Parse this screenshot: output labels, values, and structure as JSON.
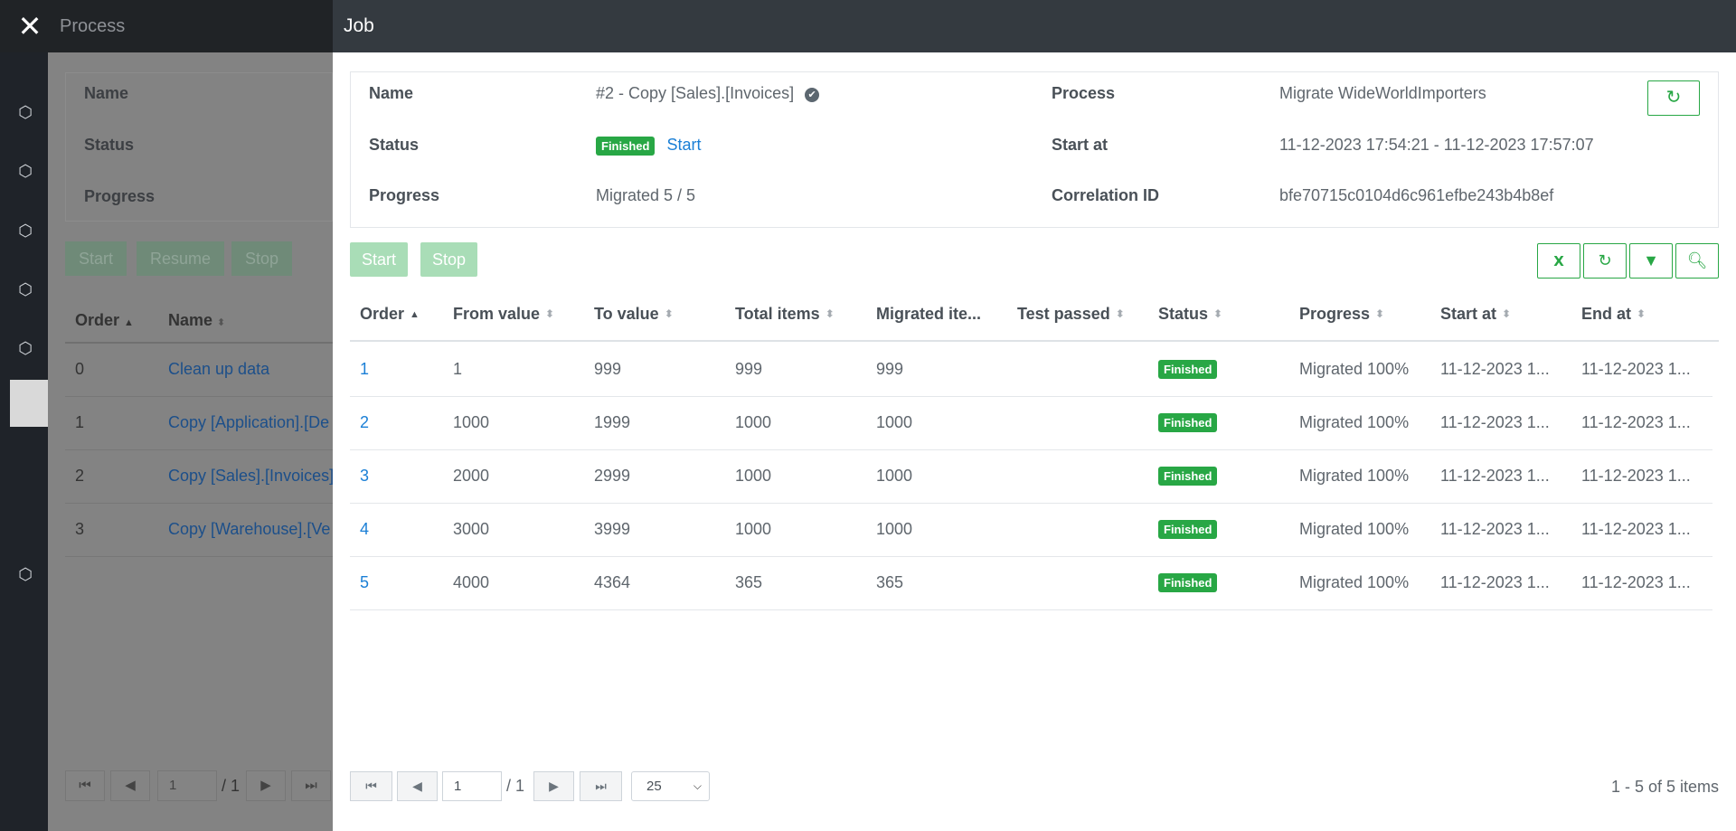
{
  "background": {
    "title": "Process",
    "card": {
      "labels": [
        "Name",
        "Status",
        "Progress"
      ]
    },
    "buttons": [
      "Start",
      "Resume",
      "Stop"
    ],
    "table": {
      "headers": [
        "Order",
        "Name"
      ],
      "rows": [
        {
          "order": "0",
          "name": "Clean up data"
        },
        {
          "order": "1",
          "name": "Copy [Application].[De"
        },
        {
          "order": "2",
          "name": "Copy [Sales].[Invoices]"
        },
        {
          "order": "3",
          "name": "Copy [Warehouse].[Ve"
        }
      ]
    },
    "pager": {
      "page": "1",
      "of": "/ 1"
    }
  },
  "panel": {
    "title": "Job",
    "details": {
      "name_label": "Name",
      "name_value": "#2 - Copy [Sales].[Invoices]",
      "status_label": "Status",
      "status_badge": "Finished",
      "status_link": "Start",
      "progress_label": "Progress",
      "progress_value": "Migrated 5 / 5",
      "process_label": "Process",
      "process_value": "Migrate WideWorldImporters",
      "start_label": "Start at",
      "start_value": "11-12-2023 17:54:21 - 11-12-2023 17:57:07",
      "correlation_label": "Correlation ID",
      "correlation_value": "bfe70715c0104d6c961efbe243b4b8ef"
    },
    "actions": {
      "start": "Start",
      "stop": "Stop"
    },
    "grid": {
      "headers": {
        "order": "Order",
        "from": "From value",
        "to": "To value",
        "total": "Total items",
        "migrated": "Migrated ite...",
        "test": "Test passed",
        "status": "Status",
        "progress": "Progress",
        "start": "Start at",
        "end": "End at"
      },
      "rows": [
        {
          "order": "1",
          "from": "1",
          "to": "999",
          "total": "999",
          "migrated": "999",
          "test": "",
          "status": "Finished",
          "progress": "Migrated 100%",
          "start": "11-12-2023 1...",
          "end": "11-12-2023 1..."
        },
        {
          "order": "2",
          "from": "1000",
          "to": "1999",
          "total": "1000",
          "migrated": "1000",
          "test": "",
          "status": "Finished",
          "progress": "Migrated 100%",
          "start": "11-12-2023 1...",
          "end": "11-12-2023 1..."
        },
        {
          "order": "3",
          "from": "2000",
          "to": "2999",
          "total": "1000",
          "migrated": "1000",
          "test": "",
          "status": "Finished",
          "progress": "Migrated 100%",
          "start": "11-12-2023 1...",
          "end": "11-12-2023 1..."
        },
        {
          "order": "4",
          "from": "3000",
          "to": "3999",
          "total": "1000",
          "migrated": "1000",
          "test": "",
          "status": "Finished",
          "progress": "Migrated 100%",
          "start": "11-12-2023 1...",
          "end": "11-12-2023 1..."
        },
        {
          "order": "5",
          "from": "4000",
          "to": "4364",
          "total": "365",
          "migrated": "365",
          "test": "",
          "status": "Finished",
          "progress": "Migrated 100%",
          "start": "11-12-2023 1...",
          "end": "11-12-2023 1..."
        }
      ]
    },
    "pager": {
      "page": "1",
      "of": "/ 1",
      "page_size": "25",
      "info": "1 - 5 of 5 items"
    },
    "colors": {
      "accent": "#28a745",
      "link": "#1a7fd6",
      "header": "#343a40"
    }
  }
}
